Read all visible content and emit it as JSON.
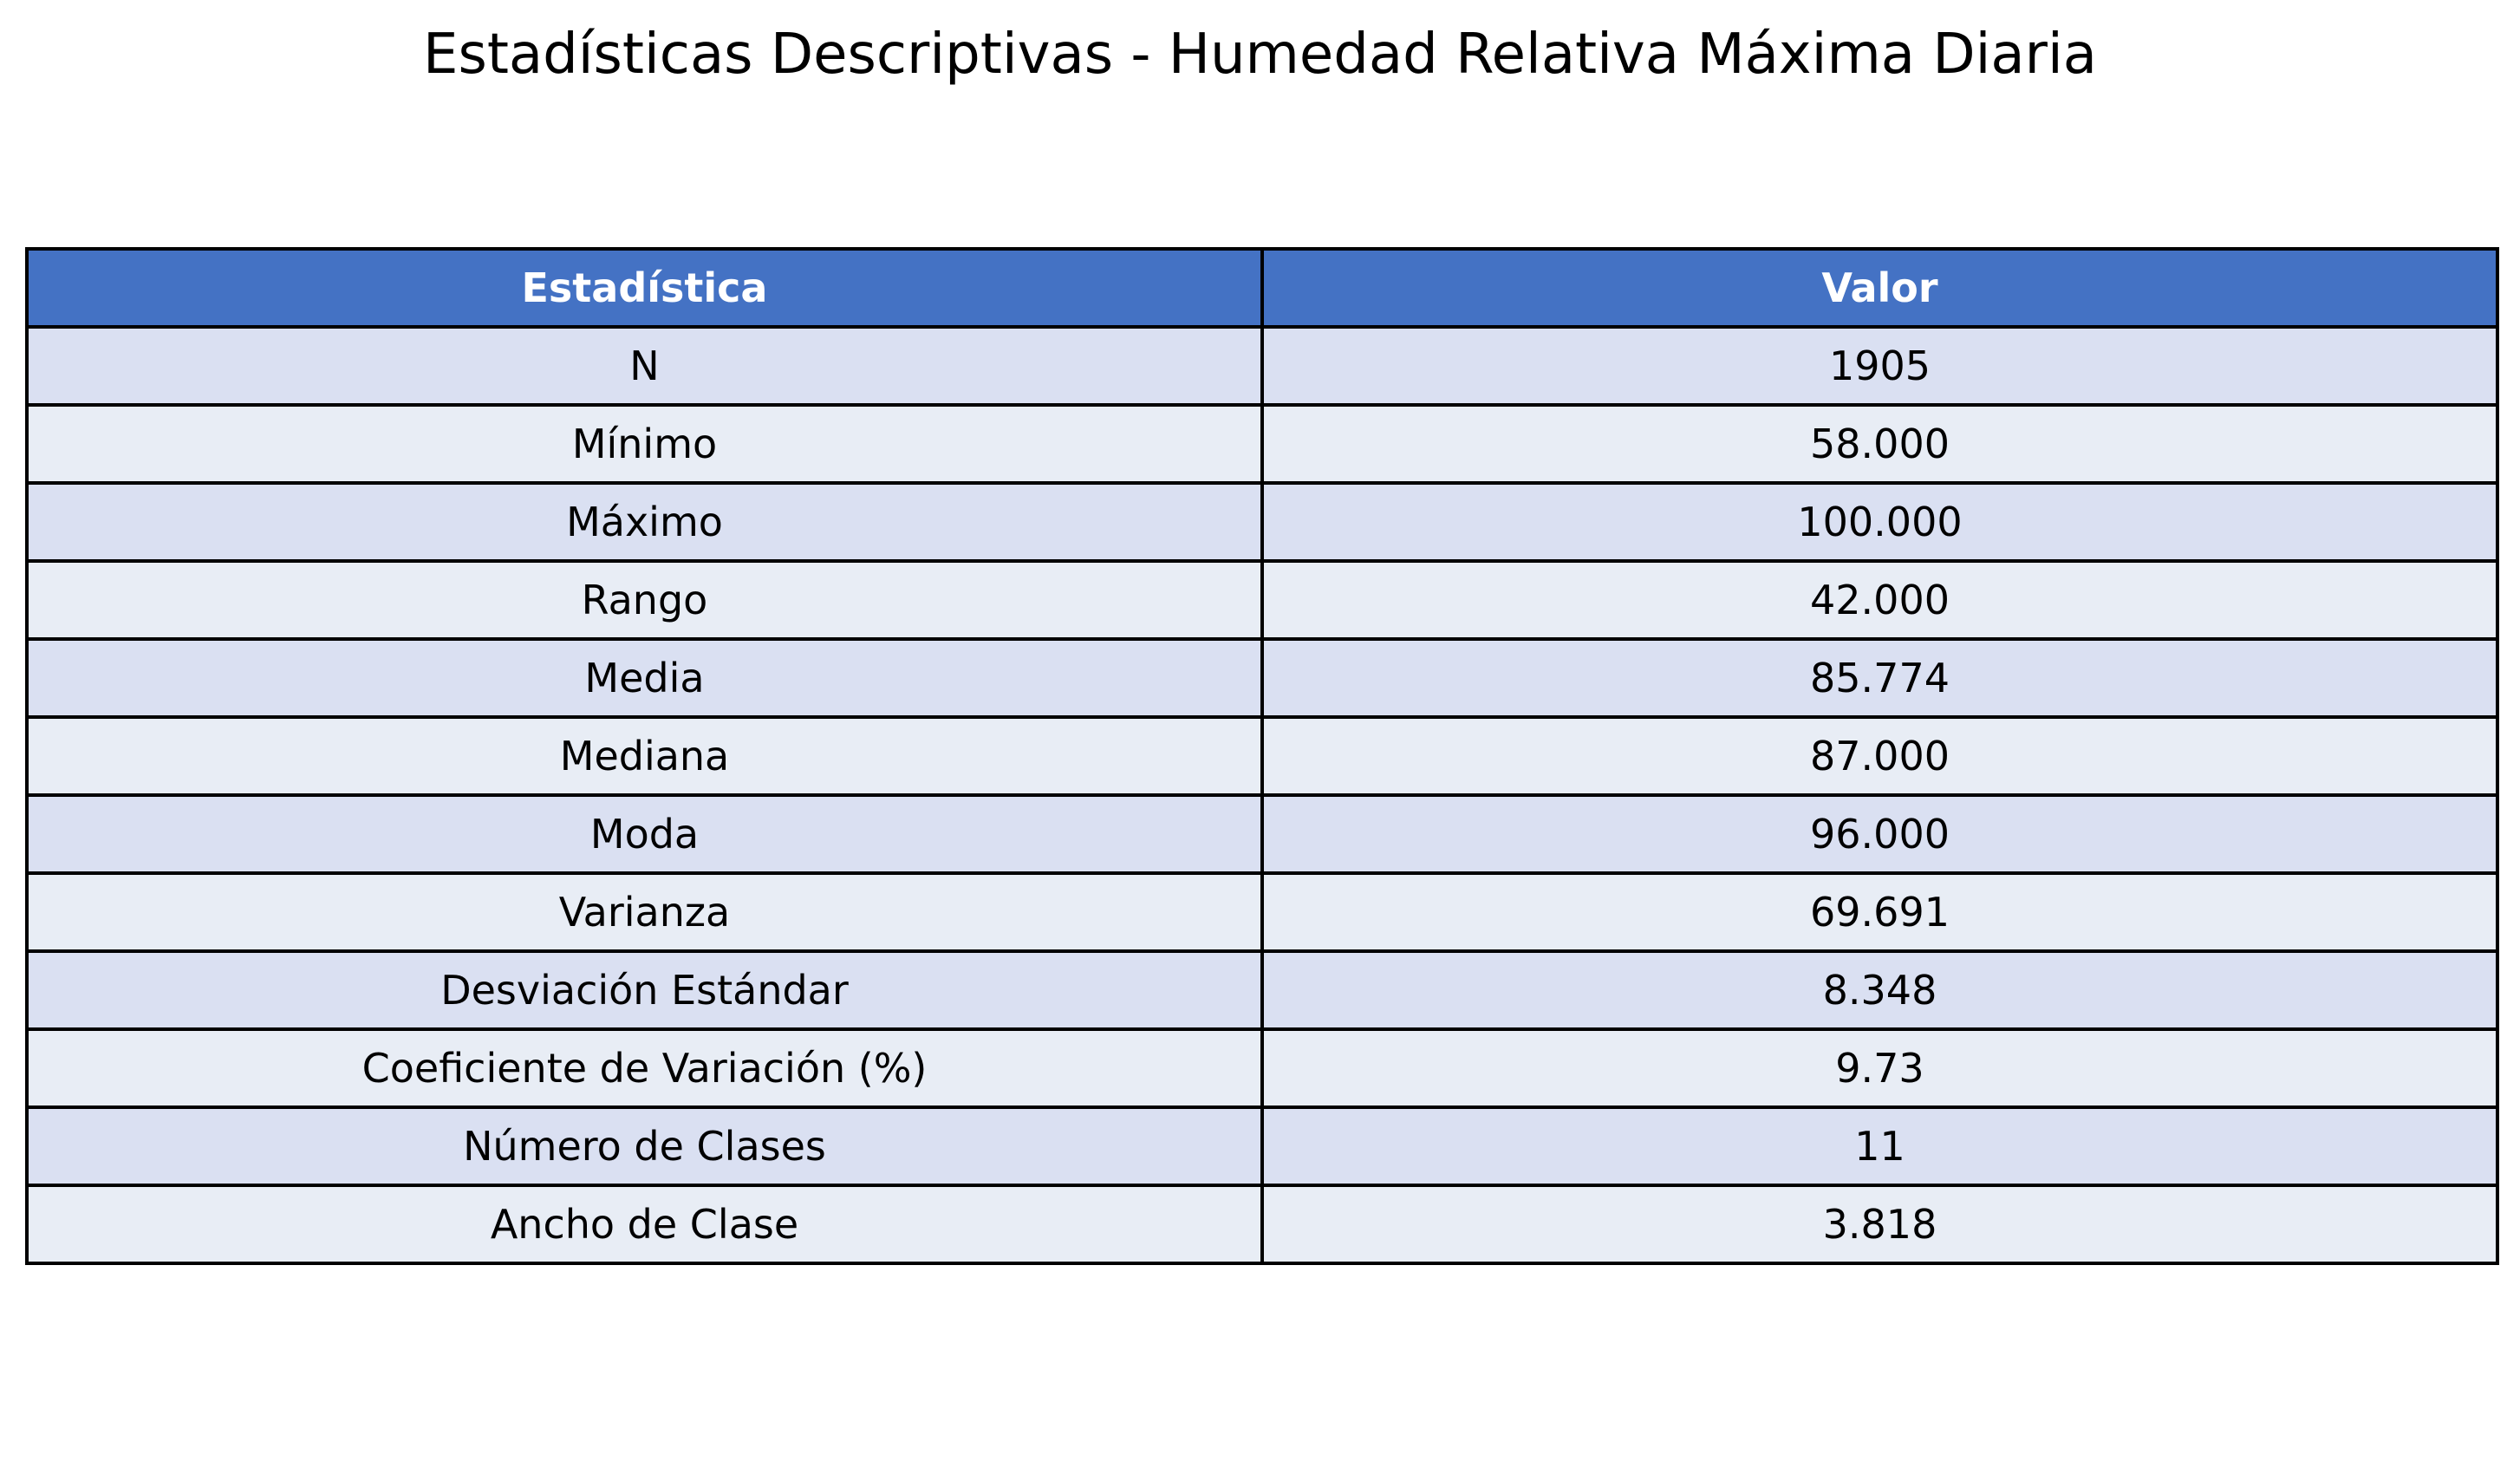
{
  "chart_data": {
    "type": "table",
    "title": "Estadísticas Descriptivas - Humedad Relativa Máxima Diaria",
    "columns": [
      "Estadística",
      "Valor"
    ],
    "rows": [
      [
        "N",
        "1905"
      ],
      [
        "Mínimo",
        "58.000"
      ],
      [
        "Máximo",
        "100.000"
      ],
      [
        "Rango",
        "42.000"
      ],
      [
        "Media",
        "85.774"
      ],
      [
        "Mediana",
        "87.000"
      ],
      [
        "Moda",
        "96.000"
      ],
      [
        "Varianza",
        "69.691"
      ],
      [
        "Desviación Estándar",
        "8.348"
      ],
      [
        "Coeficiente de Variación (%)",
        "9.73"
      ],
      [
        "Número de Clases",
        "11"
      ],
      [
        "Ancho de Clase",
        "3.818"
      ]
    ],
    "colors": {
      "header_bg": "#4472c4",
      "header_text": "#ffffff",
      "row_odd_bg": "#dae0f2",
      "row_even_bg": "#e8edf5",
      "border": "#000000"
    }
  }
}
